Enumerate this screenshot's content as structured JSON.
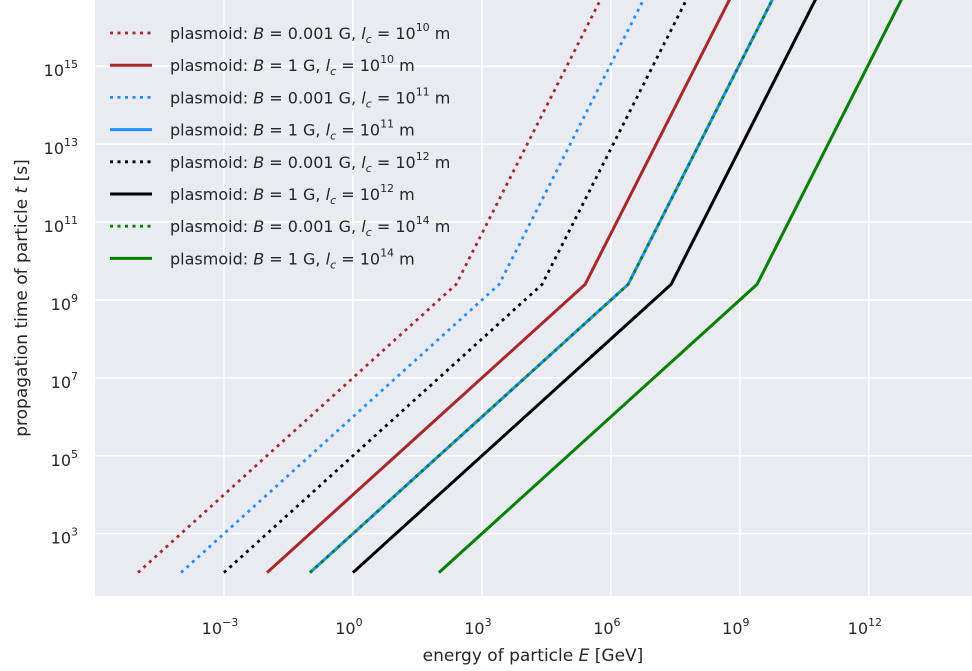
{
  "chart_data": {
    "type": "line",
    "xlabel_prefix": "energy of particle ",
    "xlabel_var": "E",
    "xlabel_suffix": " [GeV]",
    "ylabel_prefix": "propagation time of particle ",
    "ylabel_var": "t",
    "ylabel_suffix": " [s]",
    "x_scale": "log",
    "y_scale": "log",
    "xlim_log10": [
      -6.0,
      14.4
    ],
    "ylim_log10": [
      1.4,
      16.7
    ],
    "x_ticks": [
      {
        "base": "10",
        "exp": "−3",
        "log": -3
      },
      {
        "base": "10",
        "exp": "0",
        "log": 0
      },
      {
        "base": "10",
        "exp": "3",
        "log": 3
      },
      {
        "base": "10",
        "exp": "6",
        "log": 6
      },
      {
        "base": "10",
        "exp": "9",
        "log": 9
      },
      {
        "base": "10",
        "exp": "12",
        "log": 12
      }
    ],
    "y_ticks": [
      {
        "base": "10",
        "exp": "3",
        "log": 3
      },
      {
        "base": "10",
        "exp": "5",
        "log": 5
      },
      {
        "base": "10",
        "exp": "7",
        "log": 7
      },
      {
        "base": "10",
        "exp": "9",
        "log": 9
      },
      {
        "base": "10",
        "exp": "11",
        "log": 11
      },
      {
        "base": "10",
        "exp": "13",
        "log": 13
      },
      {
        "base": "10",
        "exp": "15",
        "log": 15
      }
    ],
    "grid": true,
    "legend_position": "top-left",
    "series": [
      {
        "name": "plasmoid: B = 0.001 G, l_c = 10^10 m",
        "B": "0.001",
        "lc_exp": "10",
        "color": "#a52a2a",
        "style": "dotted",
        "x_log10": [
          -5.0,
          2.4,
          5.8
        ],
        "y_log10": [
          2.0,
          9.4,
          16.8
        ]
      },
      {
        "name": "plasmoid: B = 1 G, l_c = 10^10 m",
        "B": "1",
        "lc_exp": "10",
        "color": "#a52a2a",
        "style": "solid",
        "x_log10": [
          -2.0,
          5.4,
          8.8
        ],
        "y_log10": [
          2.0,
          9.4,
          16.8
        ]
      },
      {
        "name": "plasmoid: B = 0.001 G, l_c = 10^11 m",
        "B": "0.001",
        "lc_exp": "11",
        "color": "#1e90ff",
        "style": "dotted",
        "x_log10": [
          -4.0,
          3.4,
          6.8
        ],
        "y_log10": [
          2.0,
          9.4,
          16.8
        ]
      },
      {
        "name": "plasmoid: B = 1 G, l_c = 10^11 m",
        "B": "1",
        "lc_exp": "11",
        "color": "#1e90ff",
        "style": "solid",
        "x_log10": [
          -1.0,
          6.4,
          9.8
        ],
        "y_log10": [
          2.0,
          9.4,
          16.8
        ]
      },
      {
        "name": "plasmoid: B = 0.001 G, l_c = 10^12 m",
        "B": "0.001",
        "lc_exp": "12",
        "color": "#000000",
        "style": "dotted",
        "x_log10": [
          -3.0,
          4.4,
          7.8
        ],
        "y_log10": [
          2.0,
          9.4,
          16.8
        ]
      },
      {
        "name": "plasmoid: B = 1 G, l_c = 10^12 m",
        "B": "1",
        "lc_exp": "12",
        "color": "#000000",
        "style": "solid",
        "x_log10": [
          0.0,
          7.4,
          10.8
        ],
        "y_log10": [
          2.0,
          9.4,
          16.8
        ]
      },
      {
        "name": "plasmoid: B = 0.001 G, l_c = 10^14 m",
        "B": "0.001",
        "lc_exp": "14",
        "color": "#008000",
        "style": "dotted",
        "x_log10": [
          -1.0,
          6.4,
          9.8
        ],
        "y_log10": [
          2.0,
          9.4,
          16.8
        ]
      },
      {
        "name": "plasmoid: B = 1 G, l_c = 10^14 m",
        "B": "1",
        "lc_exp": "14",
        "color": "#008000",
        "style": "solid",
        "x_log10": [
          2.0,
          9.4,
          12.8
        ],
        "y_log10": [
          2.0,
          9.4,
          16.8
        ]
      }
    ]
  },
  "legend_text": {
    "prefix": "plasmoid: ",
    "b_var": "B",
    "b_eq": " = ",
    "b_unit": " G, ",
    "l_var": "l",
    "l_sub": "c",
    "l_eq": " = 10",
    "l_unit": " m"
  },
  "colors": {
    "plot_bg": "#eaeaf2",
    "grid": "#ffffff",
    "text": "#262626"
  }
}
